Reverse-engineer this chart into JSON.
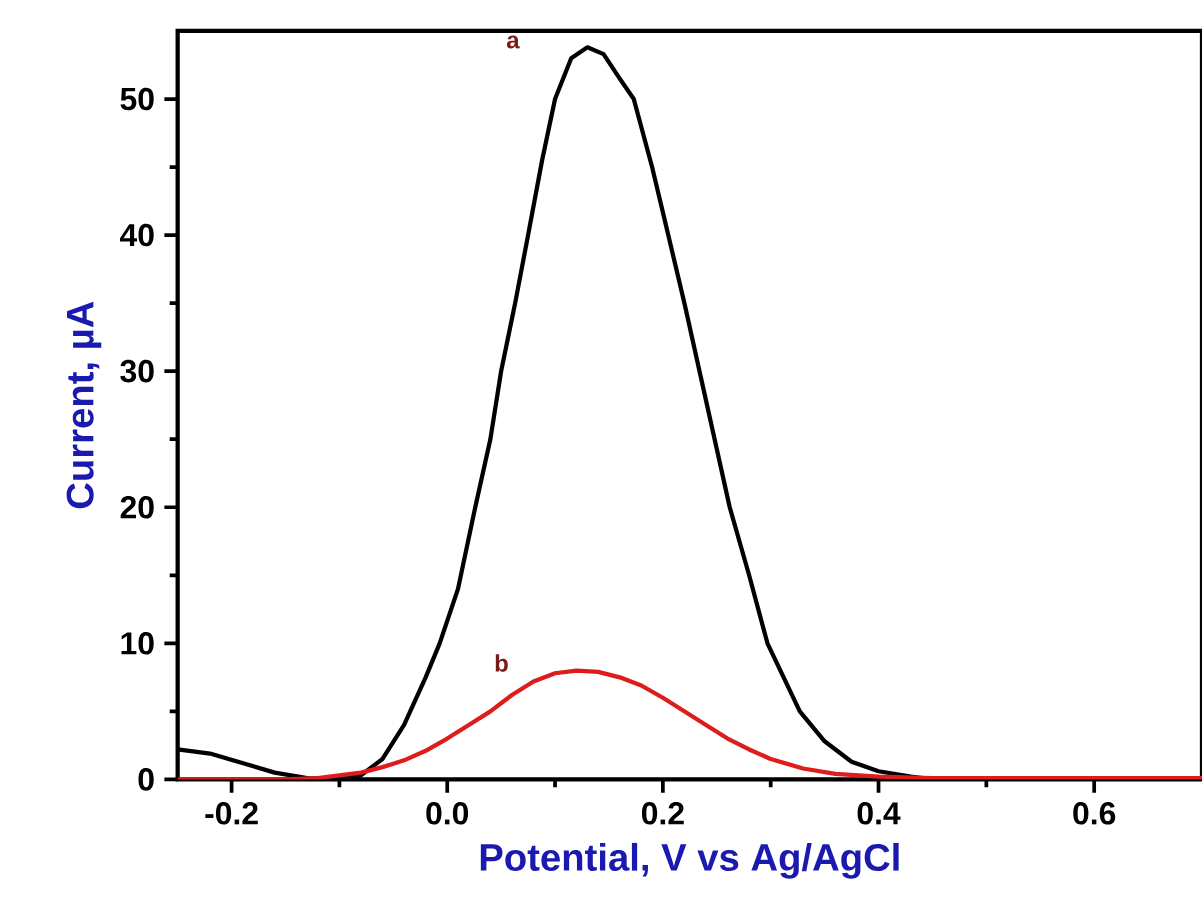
{
  "chart_data": {
    "type": "line",
    "xlabel": "Potential, V vs Ag/AgCl",
    "ylabel": "Current, µA",
    "xlim": [
      -0.25,
      0.7
    ],
    "ylim": [
      0,
      55
    ],
    "xticks": [
      -0.2,
      {
        "value": 0,
        "label": "0.0"
      },
      0.2,
      0.4,
      0.6
    ],
    "yticks": [
      0,
      10,
      20,
      30,
      40,
      50
    ],
    "grid": false,
    "legend": false,
    "marker": "none",
    "line_style": "solid",
    "series": [
      {
        "name": "a",
        "color": "#000000",
        "x": [
          -0.25,
          -0.22,
          -0.19,
          -0.16,
          -0.13,
          -0.1,
          -0.08,
          -0.06,
          -0.04,
          -0.02,
          -0.007,
          0.01,
          0.026,
          0.04,
          0.05,
          0.063,
          0.075,
          0.088,
          0.1,
          0.115,
          0.13,
          0.145,
          0.16,
          0.173,
          0.19,
          0.205,
          0.22,
          0.234,
          0.248,
          0.262,
          0.28,
          0.297,
          0.312,
          0.327,
          0.35,
          0.375,
          0.4,
          0.43,
          0.45,
          0.5,
          0.6,
          0.7
        ],
        "values": [
          2.2,
          1.9,
          1.2,
          0.5,
          0.1,
          0,
          0.3,
          1.5,
          4,
          7.5,
          10,
          14,
          20,
          25,
          30,
          35,
          40,
          45.5,
          50,
          53,
          53.8,
          53.3,
          51.5,
          50,
          45,
          40,
          35,
          30,
          25,
          20,
          15,
          10,
          7.5,
          5,
          2.8,
          1.3,
          0.6,
          0.2,
          0,
          0,
          0,
          0
        ]
      },
      {
        "name": "b",
        "color": "#dd1c1c",
        "x": [
          -0.25,
          -0.2,
          -0.15,
          -0.12,
          -0.1,
          -0.08,
          -0.06,
          -0.04,
          -0.02,
          0.0,
          0.02,
          0.04,
          0.06,
          0.08,
          0.1,
          0.12,
          0.14,
          0.16,
          0.18,
          0.2,
          0.22,
          0.24,
          0.26,
          0.28,
          0.3,
          0.33,
          0.36,
          0.4,
          0.45,
          0.5,
          0.6,
          0.7
        ],
        "values": [
          0,
          0,
          0,
          0.1,
          0.3,
          0.5,
          0.9,
          1.4,
          2.1,
          3,
          4,
          5,
          6.2,
          7.2,
          7.8,
          8,
          7.9,
          7.5,
          6.9,
          6,
          5,
          4,
          3,
          2.2,
          1.5,
          0.8,
          0.4,
          0.2,
          0.1,
          0.1,
          0.1,
          0.1
        ]
      }
    ]
  }
}
